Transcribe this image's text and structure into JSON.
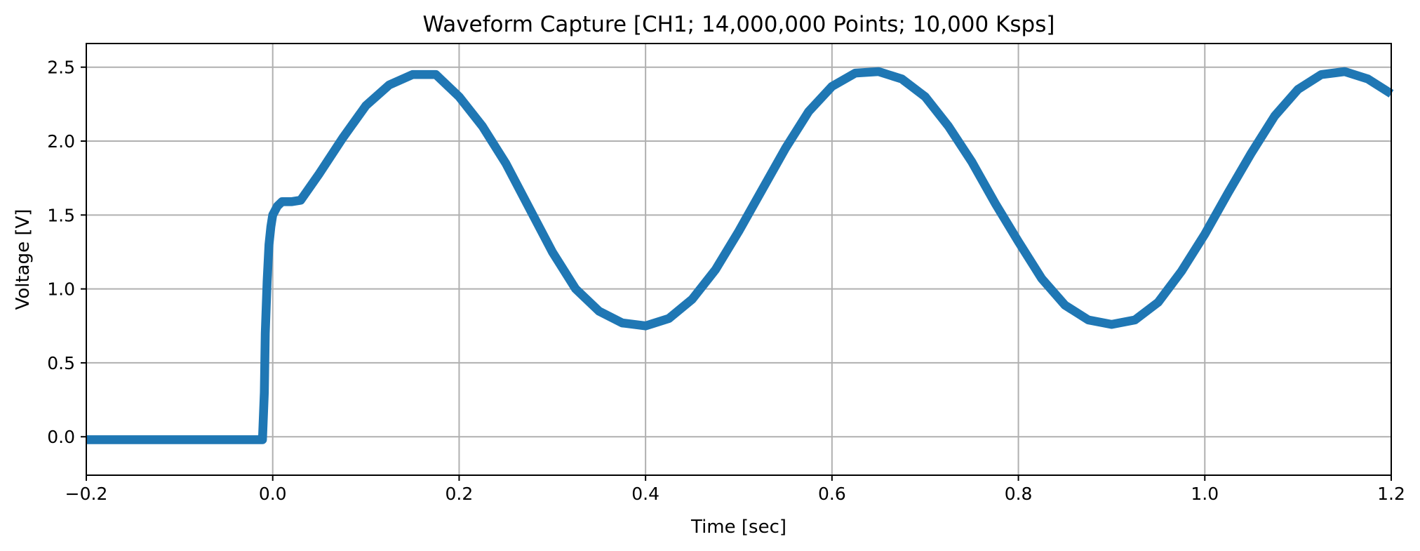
{
  "chart_data": {
    "type": "line",
    "title": "Waveform Capture [CH1; 14,000,000 Points; 10,000 Ksps]",
    "xlabel": "Time [sec]",
    "ylabel": "Voltage [V]",
    "xlim": [
      -0.2,
      1.2
    ],
    "ylim": [
      -0.26,
      2.66
    ],
    "xticks": [
      -0.2,
      0.0,
      0.2,
      0.4,
      0.6,
      0.8,
      1.0,
      1.2
    ],
    "xtick_labels": [
      "−0.2",
      "0.0",
      "0.2",
      "0.4",
      "0.6",
      "0.8",
      "1.0",
      "1.2"
    ],
    "yticks": [
      0.0,
      0.5,
      1.0,
      1.5,
      2.0,
      2.5
    ],
    "ytick_labels": [
      "0.0",
      "0.5",
      "1.0",
      "1.5",
      "2.0",
      "2.5"
    ],
    "grid": true,
    "legend": false,
    "series": [
      {
        "color": "#1f77b4",
        "band_width_v": 0.06,
        "x": [
          -0.2,
          -0.15,
          -0.1,
          -0.05,
          -0.011,
          -0.009,
          -0.008,
          -0.006,
          -0.004,
          -0.002,
          0.0,
          0.005,
          0.01,
          0.02,
          0.03,
          0.05,
          0.075,
          0.1,
          0.125,
          0.15,
          0.175,
          0.2,
          0.225,
          0.25,
          0.275,
          0.3,
          0.325,
          0.35,
          0.375,
          0.4,
          0.425,
          0.45,
          0.475,
          0.5,
          0.525,
          0.55,
          0.575,
          0.6,
          0.625,
          0.65,
          0.675,
          0.7,
          0.725,
          0.75,
          0.775,
          0.8,
          0.825,
          0.85,
          0.875,
          0.9,
          0.925,
          0.95,
          0.975,
          1.0,
          1.025,
          1.05,
          1.075,
          1.1,
          1.125,
          1.15,
          1.175,
          1.2
        ],
        "y": [
          -0.02,
          -0.02,
          -0.02,
          -0.02,
          -0.02,
          0.3,
          0.7,
          1.05,
          1.3,
          1.42,
          1.5,
          1.56,
          1.59,
          1.59,
          1.6,
          1.78,
          2.02,
          2.24,
          2.38,
          2.45,
          2.45,
          2.3,
          2.1,
          1.85,
          1.55,
          1.25,
          1.0,
          0.85,
          0.77,
          0.75,
          0.8,
          0.93,
          1.13,
          1.39,
          1.67,
          1.95,
          2.2,
          2.37,
          2.46,
          2.47,
          2.42,
          2.3,
          2.1,
          1.86,
          1.58,
          1.32,
          1.07,
          0.89,
          0.79,
          0.76,
          0.79,
          0.91,
          1.12,
          1.37,
          1.65,
          1.92,
          2.17,
          2.35,
          2.45,
          2.47,
          2.42,
          2.32
        ]
      }
    ]
  }
}
